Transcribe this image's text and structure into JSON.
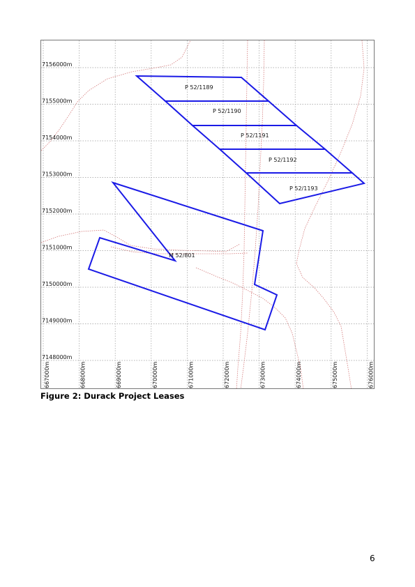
{
  "map": {
    "northing_labels": [
      "7156000m",
      "7155000m",
      "7154000m",
      "7153000m",
      "7152000m",
      "7151000m",
      "7150000m",
      "7149000m",
      "7148000m"
    ],
    "easting_labels": [
      "667000m",
      "668000m",
      "669000m",
      "670000m",
      "671000m",
      "672000m",
      "673000m",
      "674000m",
      "675000m",
      "676000m"
    ],
    "colors": {
      "lease_outline": "#1a1ae6",
      "grid": "#9a9a9a",
      "contour": "#d47a7a"
    },
    "leases": [
      {
        "id": "P 52/1189"
      },
      {
        "id": "P 52/1190"
      },
      {
        "id": "P 52/1191"
      },
      {
        "id": "P 52/1192"
      },
      {
        "id": "P 52/1193"
      },
      {
        "id": "M 52/801"
      }
    ]
  },
  "caption": "Figure 2:  Durack Project Leases",
  "page_number": "6"
}
